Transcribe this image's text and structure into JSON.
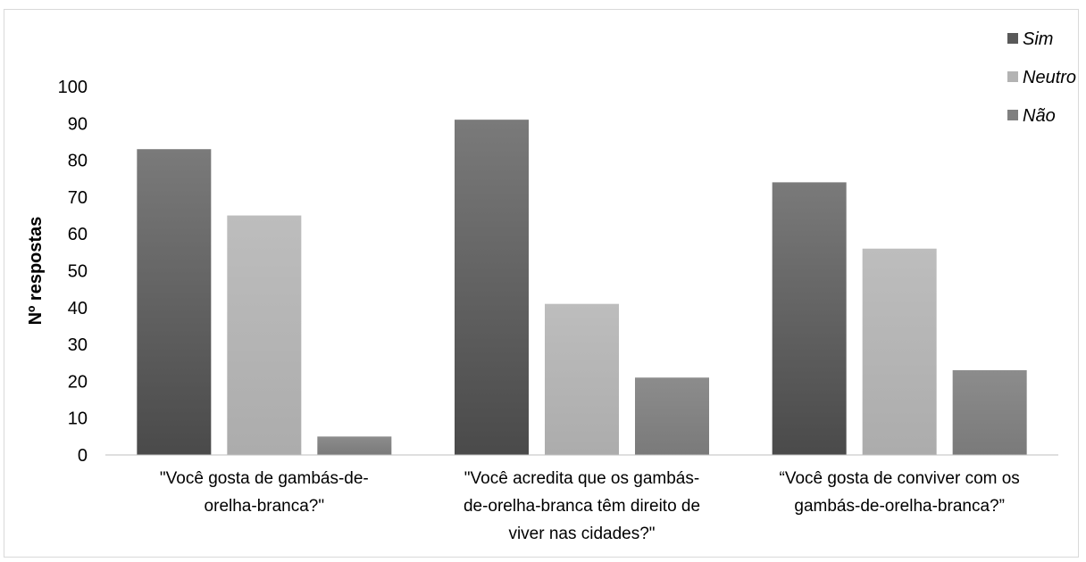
{
  "chart_data": {
    "type": "bar",
    "categories": [
      [
        "\"Você gosta de gambás-de-",
        "orelha-branca?\""
      ],
      [
        "\"Você acredita que os gambás-",
        "de-orelha-branca têm direito de",
        "viver nas cidades?\""
      ],
      [
        "“Você gosta de conviver com os",
        "gambás-de-orelha-branca?”"
      ]
    ],
    "series": [
      {
        "name": "Sim",
        "values": [
          83,
          91,
          74
        ],
        "color": "#595959"
      },
      {
        "name": "Neutro",
        "values": [
          65,
          41,
          56
        ],
        "color": "#b3b3b3"
      },
      {
        "name": "Não",
        "values": [
          5,
          21,
          23
        ],
        "color": "#808080"
      }
    ],
    "ylabel": "Nº respostas",
    "ylim": [
      0,
      100
    ],
    "yticks": [
      0,
      10,
      20,
      30,
      40,
      50,
      60,
      70,
      80,
      90,
      100
    ],
    "grid": false,
    "legend": "top-right"
  }
}
